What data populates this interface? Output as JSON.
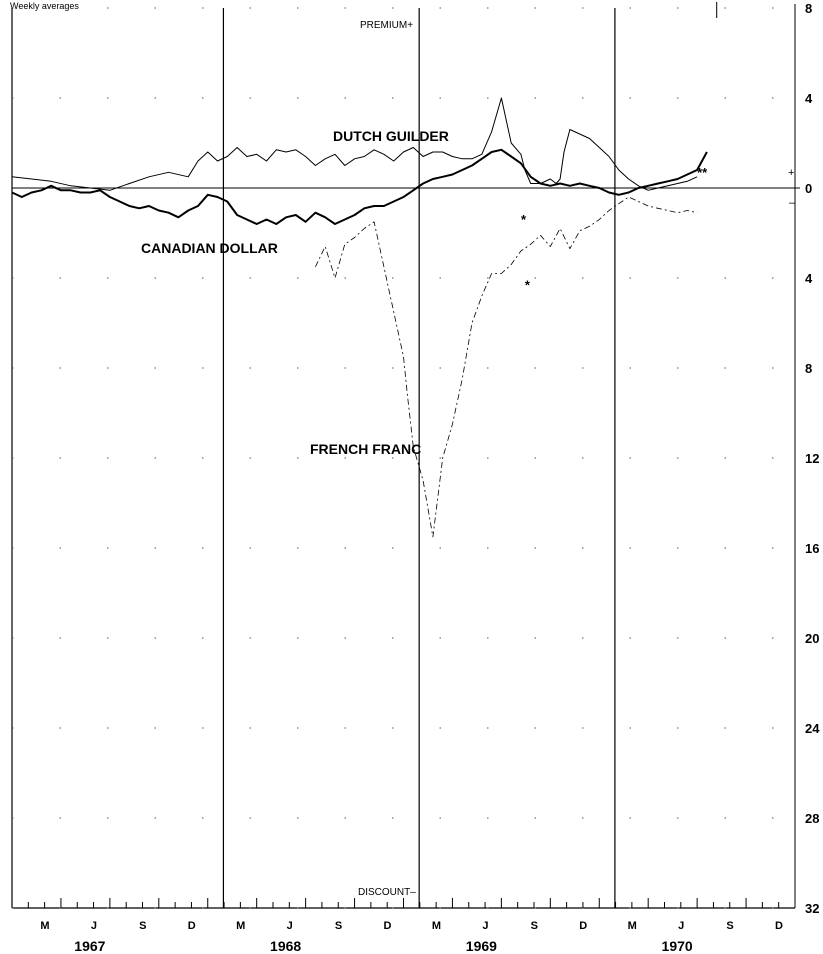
{
  "chart_data": {
    "type": "line",
    "subtitle": "Weekly averages",
    "top_label": "PREMIUM+",
    "bottom_label": "DISCOUNT–",
    "yticks": [
      {
        "label": "8",
        "value": -8
      },
      {
        "label": "4",
        "value": -4
      },
      {
        "label": "0",
        "value": 0
      },
      {
        "label": "4",
        "value": 4
      },
      {
        "label": "8",
        "value": 8
      },
      {
        "label": "12",
        "value": 12
      },
      {
        "label": "16",
        "value": 16
      },
      {
        "label": "20",
        "value": 20
      },
      {
        "label": "24",
        "value": 24
      },
      {
        "label": "28",
        "value": 28
      },
      {
        "label": "32",
        "value": 32
      }
    ],
    "plus_sign": "+",
    "minus_sign": "–",
    "ylim": [
      -8,
      32
    ],
    "xlim": [
      1967.0,
      1971.0
    ],
    "xticks": [
      {
        "label": "M",
        "x": 1967.25
      },
      {
        "label": "J",
        "x": 1967.5
      },
      {
        "label": "S",
        "x": 1967.75
      },
      {
        "label": "D",
        "x": 1968.0
      },
      {
        "label": "M",
        "x": 1968.25
      },
      {
        "label": "J",
        "x": 1968.5
      },
      {
        "label": "S",
        "x": 1968.75
      },
      {
        "label": "D",
        "x": 1969.0
      },
      {
        "label": "M",
        "x": 1969.25
      },
      {
        "label": "J",
        "x": 1969.5
      },
      {
        "label": "S",
        "x": 1969.75
      },
      {
        "label": "D",
        "x": 1970.0
      },
      {
        "label": "M",
        "x": 1970.25
      },
      {
        "label": "J",
        "x": 1970.5
      },
      {
        "label": "S",
        "x": 1970.75
      },
      {
        "label": "D",
        "x": 1971.0
      }
    ],
    "years": [
      {
        "label": "1967",
        "x": 1967.5
      },
      {
        "label": "1968",
        "x": 1968.5
      },
      {
        "label": "1969",
        "x": 1969.5
      },
      {
        "label": "1970",
        "x": 1970.5
      }
    ],
    "year_dividers": [
      1968.08,
      1969.08,
      1970.08
    ],
    "series": [
      {
        "name": "DUTCH GUILDER",
        "weight": 1,
        "color": "#000000",
        "points": [
          [
            1967.0,
            -0.5
          ],
          [
            1967.1,
            -0.4
          ],
          [
            1967.2,
            -0.3
          ],
          [
            1967.3,
            -0.1
          ],
          [
            1967.4,
            0.0
          ],
          [
            1967.5,
            0.1
          ],
          [
            1967.6,
            -0.2
          ],
          [
            1967.7,
            -0.5
          ],
          [
            1967.8,
            -0.7
          ],
          [
            1967.9,
            -0.5
          ],
          [
            1967.95,
            -1.2
          ],
          [
            1968.0,
            -1.6
          ],
          [
            1968.05,
            -1.2
          ],
          [
            1968.1,
            -1.4
          ],
          [
            1968.15,
            -1.8
          ],
          [
            1968.2,
            -1.4
          ],
          [
            1968.25,
            -1.5
          ],
          [
            1968.3,
            -1.2
          ],
          [
            1968.35,
            -1.7
          ],
          [
            1968.4,
            -1.6
          ],
          [
            1968.45,
            -1.7
          ],
          [
            1968.5,
            -1.4
          ],
          [
            1968.55,
            -1.0
          ],
          [
            1968.6,
            -1.3
          ],
          [
            1968.65,
            -1.5
          ],
          [
            1968.7,
            -1.0
          ],
          [
            1968.75,
            -1.3
          ],
          [
            1968.8,
            -1.4
          ],
          [
            1968.85,
            -1.7
          ],
          [
            1968.9,
            -1.5
          ],
          [
            1968.95,
            -1.2
          ],
          [
            1969.0,
            -1.6
          ],
          [
            1969.05,
            -1.8
          ],
          [
            1969.1,
            -1.4
          ],
          [
            1969.15,
            -1.6
          ],
          [
            1969.2,
            -1.6
          ],
          [
            1969.25,
            -1.4
          ],
          [
            1969.3,
            -1.3
          ],
          [
            1969.35,
            -1.3
          ],
          [
            1969.4,
            -1.5
          ],
          [
            1969.45,
            -2.5
          ],
          [
            1969.5,
            -4.0
          ],
          [
            1969.55,
            -2.0
          ],
          [
            1969.6,
            -1.5
          ],
          [
            1969.62,
            -0.8
          ],
          [
            1969.65,
            -0.2
          ],
          [
            1969.7,
            -0.2
          ],
          [
            1969.75,
            -0.4
          ],
          [
            1969.78,
            -0.2
          ],
          [
            1969.8,
            -0.4
          ],
          [
            1969.82,
            -1.6
          ],
          [
            1969.85,
            -2.6
          ],
          [
            1969.9,
            -2.4
          ],
          [
            1969.95,
            -2.2
          ],
          [
            1970.0,
            -1.8
          ],
          [
            1970.05,
            -1.4
          ],
          [
            1970.1,
            -0.8
          ],
          [
            1970.15,
            -0.4
          ],
          [
            1970.2,
            -0.1
          ],
          [
            1970.25,
            0.1
          ],
          [
            1970.3,
            0.0
          ],
          [
            1970.35,
            -0.1
          ],
          [
            1970.4,
            -0.2
          ],
          [
            1970.45,
            -0.3
          ],
          [
            1970.5,
            -0.5
          ]
        ]
      },
      {
        "name": "CANADIAN DOLLAR",
        "weight": 2,
        "color": "#000000",
        "points": [
          [
            1967.0,
            0.2
          ],
          [
            1967.05,
            0.4
          ],
          [
            1967.1,
            0.2
          ],
          [
            1967.15,
            0.1
          ],
          [
            1967.2,
            -0.1
          ],
          [
            1967.25,
            0.1
          ],
          [
            1967.3,
            0.1
          ],
          [
            1967.35,
            0.2
          ],
          [
            1967.4,
            0.2
          ],
          [
            1967.45,
            0.1
          ],
          [
            1967.5,
            0.4
          ],
          [
            1967.55,
            0.6
          ],
          [
            1967.6,
            0.8
          ],
          [
            1967.65,
            0.9
          ],
          [
            1967.7,
            0.8
          ],
          [
            1967.75,
            1.0
          ],
          [
            1967.8,
            1.1
          ],
          [
            1967.85,
            1.3
          ],
          [
            1967.9,
            1.0
          ],
          [
            1967.95,
            0.8
          ],
          [
            1968.0,
            0.3
          ],
          [
            1968.05,
            0.4
          ],
          [
            1968.1,
            0.6
          ],
          [
            1968.15,
            1.2
          ],
          [
            1968.2,
            1.4
          ],
          [
            1968.25,
            1.6
          ],
          [
            1968.3,
            1.4
          ],
          [
            1968.35,
            1.6
          ],
          [
            1968.4,
            1.3
          ],
          [
            1968.45,
            1.2
          ],
          [
            1968.5,
            1.5
          ],
          [
            1968.55,
            1.1
          ],
          [
            1968.6,
            1.3
          ],
          [
            1968.65,
            1.6
          ],
          [
            1968.7,
            1.4
          ],
          [
            1968.75,
            1.2
          ],
          [
            1968.8,
            0.9
          ],
          [
            1968.85,
            0.8
          ],
          [
            1968.9,
            0.8
          ],
          [
            1968.95,
            0.6
          ],
          [
            1969.0,
            0.4
          ],
          [
            1969.05,
            0.1
          ],
          [
            1969.1,
            -0.2
          ],
          [
            1969.15,
            -0.4
          ],
          [
            1969.2,
            -0.5
          ],
          [
            1969.25,
            -0.6
          ],
          [
            1969.3,
            -0.8
          ],
          [
            1969.35,
            -1.0
          ],
          [
            1969.4,
            -1.3
          ],
          [
            1969.45,
            -1.6
          ],
          [
            1969.5,
            -1.7
          ],
          [
            1969.55,
            -1.4
          ],
          [
            1969.6,
            -1.1
          ],
          [
            1969.65,
            -0.5
          ],
          [
            1969.7,
            -0.2
          ],
          [
            1969.75,
            -0.1
          ],
          [
            1969.8,
            -0.2
          ],
          [
            1969.85,
            -0.1
          ],
          [
            1969.9,
            -0.2
          ],
          [
            1969.95,
            -0.1
          ],
          [
            1970.0,
            0.0
          ],
          [
            1970.05,
            0.2
          ],
          [
            1970.1,
            0.3
          ],
          [
            1970.15,
            0.2
          ],
          [
            1970.2,
            0.0
          ],
          [
            1970.25,
            -0.1
          ],
          [
            1970.3,
            -0.2
          ],
          [
            1970.35,
            -0.3
          ],
          [
            1970.4,
            -0.4
          ],
          [
            1970.45,
            -0.6
          ],
          [
            1970.5,
            -0.8
          ],
          [
            1970.55,
            -1.6
          ]
        ]
      },
      {
        "name": "FRENCH FRANC",
        "weight": 0.8,
        "color": "#000000",
        "dashed": true,
        "points": [
          [
            1968.55,
            3.5
          ],
          [
            1968.6,
            2.6
          ],
          [
            1968.65,
            4.0
          ],
          [
            1968.7,
            2.5
          ],
          [
            1968.75,
            2.2
          ],
          [
            1968.8,
            1.8
          ],
          [
            1968.85,
            1.5
          ],
          [
            1969.0,
            7.5
          ],
          [
            1969.02,
            9.2
          ],
          [
            1969.05,
            11.5
          ],
          [
            1969.1,
            13.0
          ],
          [
            1969.15,
            15.5
          ],
          [
            1969.2,
            12.0
          ],
          [
            1969.25,
            10.5
          ],
          [
            1969.3,
            8.5
          ],
          [
            1969.35,
            6.0
          ],
          [
            1969.4,
            4.8
          ],
          [
            1969.45,
            3.8
          ],
          [
            1969.5,
            3.8
          ],
          [
            1969.55,
            3.4
          ],
          [
            1969.6,
            2.8
          ],
          [
            1969.65,
            2.5
          ],
          [
            1969.7,
            2.1
          ],
          [
            1969.75,
            2.6
          ],
          [
            1969.8,
            1.8
          ],
          [
            1969.85,
            2.7
          ],
          [
            1969.9,
            1.9
          ],
          [
            1969.95,
            1.7
          ],
          [
            1970.0,
            1.4
          ],
          [
            1970.05,
            1.0
          ],
          [
            1970.1,
            0.7
          ],
          [
            1970.15,
            0.4
          ],
          [
            1970.2,
            0.6
          ],
          [
            1970.25,
            0.8
          ],
          [
            1970.3,
            0.9
          ],
          [
            1970.35,
            1.0
          ],
          [
            1970.4,
            1.1
          ],
          [
            1970.45,
            1.0
          ],
          [
            1970.5,
            1.1
          ]
        ]
      }
    ],
    "annotations": [
      {
        "text": "*",
        "x": 1969.6,
        "y": 1.6
      },
      {
        "text": "*",
        "x": 1969.62,
        "y": 4.5
      },
      {
        "text": "**",
        "x": 1970.5,
        "y": -0.5
      }
    ]
  }
}
